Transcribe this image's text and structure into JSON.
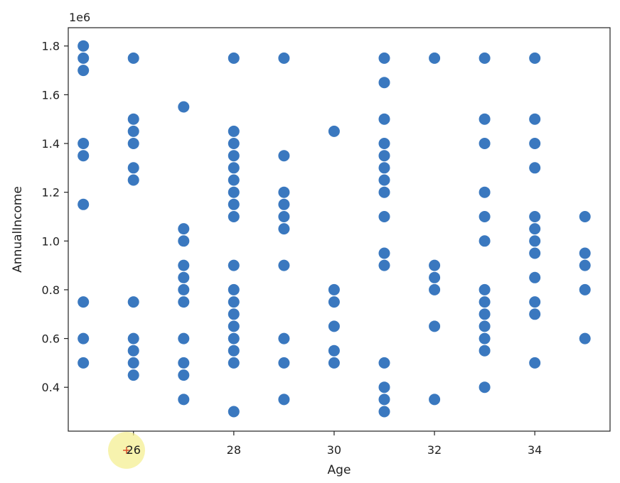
{
  "chart_data": {
    "type": "scatter",
    "title": "",
    "xlabel": "Age",
    "ylabel": "AnnualIncome",
    "y_scale_label": "1e6",
    "xlim": [
      24.7,
      35.5
    ],
    "ylim": [
      0.22,
      1.875
    ],
    "x_ticks": [
      26,
      28,
      30,
      32,
      34
    ],
    "x_tick_labels": [
      "26",
      "28",
      "30",
      "32",
      "34"
    ],
    "y_ticks": [
      0.4,
      0.6,
      0.8,
      1.0,
      1.2,
      1.4,
      1.6,
      1.8
    ],
    "y_tick_labels": [
      "0.4",
      "0.6",
      "0.8",
      "1.0",
      "1.2",
      "1.4",
      "1.6",
      "1.8"
    ],
    "grid": false,
    "marker_color": "#3a78bf",
    "cursor_color": "#f4ee8c",
    "series": [
      {
        "points": [
          [
            25,
            1.8
          ],
          [
            25,
            1.75
          ],
          [
            25,
            1.7
          ],
          [
            25,
            1.4
          ],
          [
            25,
            1.35
          ],
          [
            25,
            1.15
          ],
          [
            25,
            0.75
          ],
          [
            25,
            0.6
          ],
          [
            25,
            0.5
          ],
          [
            26,
            1.75
          ],
          [
            26,
            1.5
          ],
          [
            26,
            1.45
          ],
          [
            26,
            1.4
          ],
          [
            26,
            1.3
          ],
          [
            26,
            1.25
          ],
          [
            26,
            0.75
          ],
          [
            26,
            0.6
          ],
          [
            26,
            0.55
          ],
          [
            26,
            0.5
          ],
          [
            26,
            0.45
          ],
          [
            27,
            1.55
          ],
          [
            27,
            1.05
          ],
          [
            27,
            1.0
          ],
          [
            27,
            0.9
          ],
          [
            27,
            0.85
          ],
          [
            27,
            0.8
          ],
          [
            27,
            0.75
          ],
          [
            27,
            0.6
          ],
          [
            27,
            0.5
          ],
          [
            27,
            0.45
          ],
          [
            27,
            0.35
          ],
          [
            28,
            1.75
          ],
          [
            28,
            1.45
          ],
          [
            28,
            1.4
          ],
          [
            28,
            1.35
          ],
          [
            28,
            1.3
          ],
          [
            28,
            1.25
          ],
          [
            28,
            1.2
          ],
          [
            28,
            1.15
          ],
          [
            28,
            1.1
          ],
          [
            28,
            0.9
          ],
          [
            28,
            0.8
          ],
          [
            28,
            0.75
          ],
          [
            28,
            0.7
          ],
          [
            28,
            0.65
          ],
          [
            28,
            0.6
          ],
          [
            28,
            0.55
          ],
          [
            28,
            0.5
          ],
          [
            28,
            0.3
          ],
          [
            29,
            1.75
          ],
          [
            29,
            1.35
          ],
          [
            29,
            1.2
          ],
          [
            29,
            1.15
          ],
          [
            29,
            1.1
          ],
          [
            29,
            1.05
          ],
          [
            29,
            0.9
          ],
          [
            29,
            0.6
          ],
          [
            29,
            0.5
          ],
          [
            29,
            0.35
          ],
          [
            30,
            1.45
          ],
          [
            30,
            0.8
          ],
          [
            30,
            0.75
          ],
          [
            30,
            0.65
          ],
          [
            30,
            0.55
          ],
          [
            30,
            0.5
          ],
          [
            31,
            1.75
          ],
          [
            31,
            1.65
          ],
          [
            31,
            1.5
          ],
          [
            31,
            1.4
          ],
          [
            31,
            1.35
          ],
          [
            31,
            1.3
          ],
          [
            31,
            1.25
          ],
          [
            31,
            1.2
          ],
          [
            31,
            1.1
          ],
          [
            31,
            0.95
          ],
          [
            31,
            0.9
          ],
          [
            31,
            0.5
          ],
          [
            31,
            0.4
          ],
          [
            31,
            0.35
          ],
          [
            31,
            0.3
          ],
          [
            32,
            1.75
          ],
          [
            32,
            0.9
          ],
          [
            32,
            0.85
          ],
          [
            32,
            0.8
          ],
          [
            32,
            0.65
          ],
          [
            32,
            0.35
          ],
          [
            33,
            1.75
          ],
          [
            33,
            1.5
          ],
          [
            33,
            1.4
          ],
          [
            33,
            1.2
          ],
          [
            33,
            1.1
          ],
          [
            33,
            1.0
          ],
          [
            33,
            0.8
          ],
          [
            33,
            0.75
          ],
          [
            33,
            0.7
          ],
          [
            33,
            0.65
          ],
          [
            33,
            0.6
          ],
          [
            33,
            0.55
          ],
          [
            33,
            0.4
          ],
          [
            34,
            1.75
          ],
          [
            34,
            1.5
          ],
          [
            34,
            1.4
          ],
          [
            34,
            1.3
          ],
          [
            34,
            1.1
          ],
          [
            34,
            1.05
          ],
          [
            34,
            1.0
          ],
          [
            34,
            0.95
          ],
          [
            34,
            0.85
          ],
          [
            34,
            0.75
          ],
          [
            34,
            0.7
          ],
          [
            34,
            0.5
          ],
          [
            35,
            1.1
          ],
          [
            35,
            0.95
          ],
          [
            35,
            0.9
          ],
          [
            35,
            0.8
          ],
          [
            35,
            0.6
          ]
        ]
      }
    ]
  }
}
